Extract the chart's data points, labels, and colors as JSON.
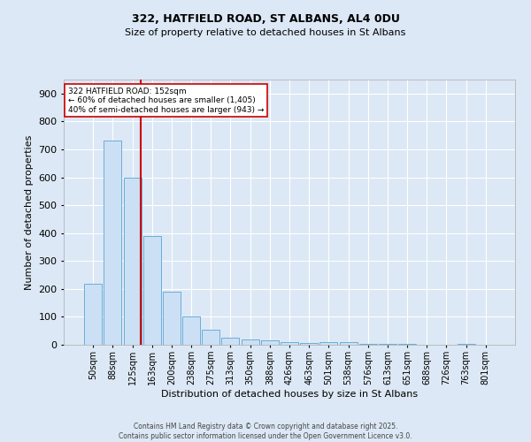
{
  "title1": "322, HATFIELD ROAD, ST ALBANS, AL4 0DU",
  "title2": "Size of property relative to detached houses in St Albans",
  "xlabel": "Distribution of detached houses by size in St Albans",
  "ylabel": "Number of detached properties",
  "categories": [
    "50sqm",
    "88sqm",
    "125sqm",
    "163sqm",
    "200sqm",
    "238sqm",
    "275sqm",
    "313sqm",
    "350sqm",
    "388sqm",
    "426sqm",
    "463sqm",
    "501sqm",
    "538sqm",
    "576sqm",
    "613sqm",
    "651sqm",
    "688sqm",
    "726sqm",
    "763sqm",
    "801sqm"
  ],
  "values": [
    220,
    730,
    600,
    390,
    190,
    100,
    55,
    25,
    20,
    15,
    10,
    5,
    8,
    8,
    3,
    3,
    2,
    1,
    1,
    4,
    1
  ],
  "bar_color": "#cce0f5",
  "bar_edge_color": "#6baed6",
  "red_line_index": 2.42,
  "annotation_title": "322 HATFIELD ROAD: 152sqm",
  "annotation_line1": "← 60% of detached houses are smaller (1,405)",
  "annotation_line2": "40% of semi-detached houses are larger (943) →",
  "annotation_box_color": "#ffffff",
  "annotation_box_edge": "#cc0000",
  "red_line_color": "#cc0000",
  "background_color": "#dce8f5",
  "footer1": "Contains HM Land Registry data © Crown copyright and database right 2025.",
  "footer2": "Contains public sector information licensed under the Open Government Licence v3.0.",
  "ylim": [
    0,
    950
  ],
  "yticks": [
    0,
    100,
    200,
    300,
    400,
    500,
    600,
    700,
    800,
    900
  ]
}
